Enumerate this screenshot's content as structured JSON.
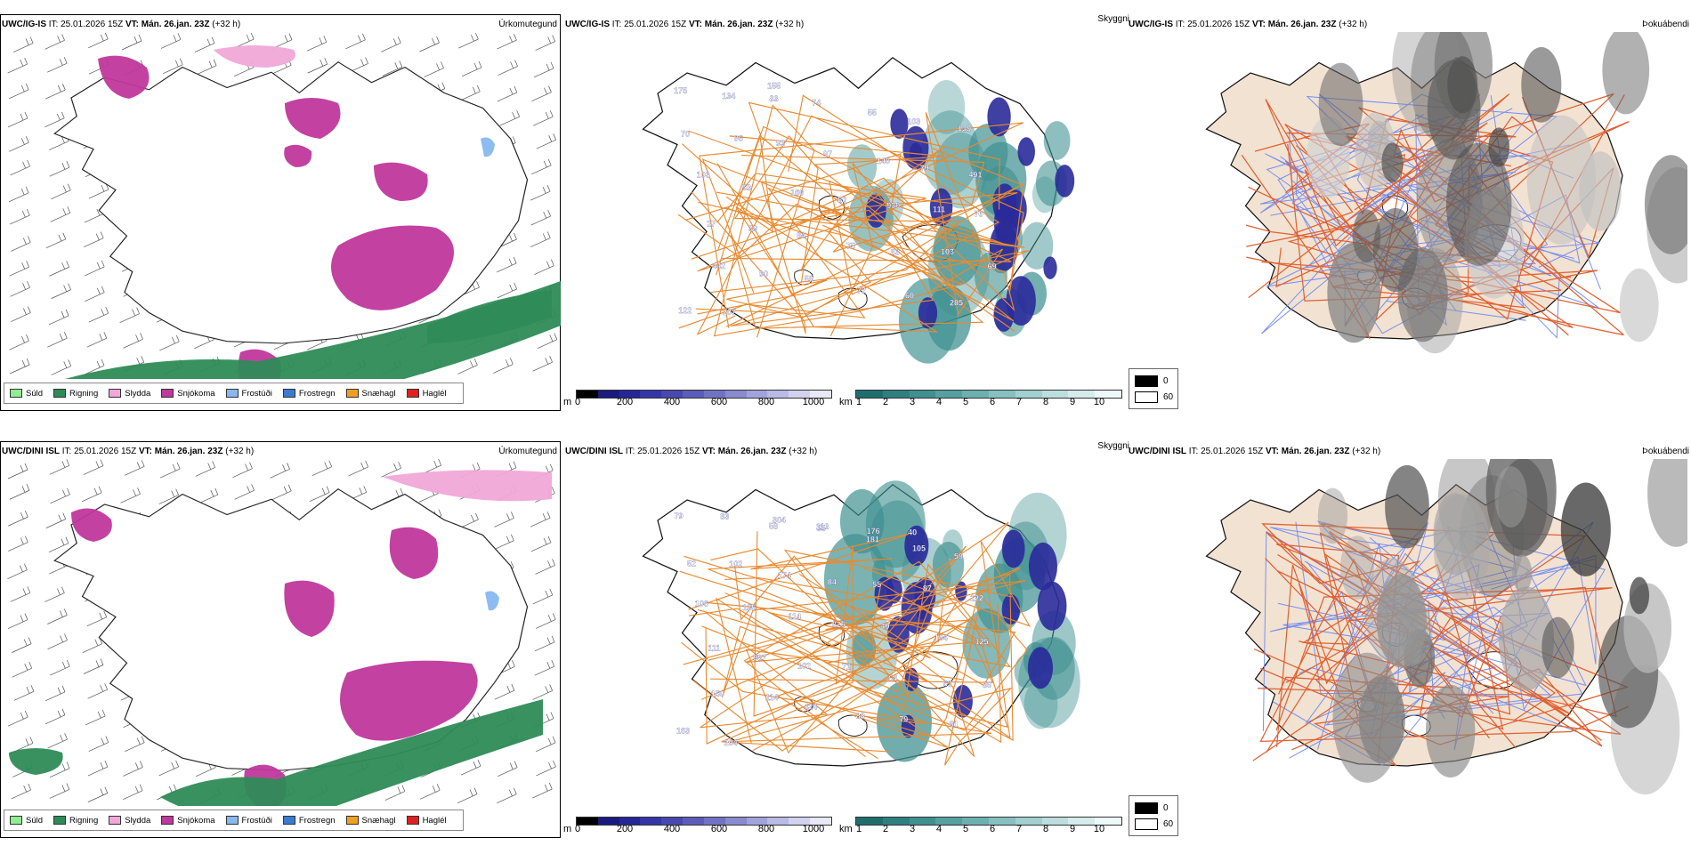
{
  "rows": [
    {
      "model": "UWC/IG-IS",
      "it_label": "IT:",
      "it_value": "25.01.2026 15Z",
      "vt_label": "VT:",
      "vt_value": "Mán. 26.jan. 23Z",
      "lead": "(+32 h)",
      "cloud_labels": [
        "175",
        "134",
        "83",
        "74",
        "55",
        "103",
        "139",
        "70",
        "96",
        "93",
        "97",
        "140",
        "79",
        "491",
        "103",
        "53",
        "160",
        "80",
        "930",
        "111",
        "76",
        "27",
        "39",
        "84",
        "75",
        "83",
        "103",
        "69",
        "442",
        "90",
        "59",
        "72",
        "60",
        "285",
        "122",
        "207",
        "155"
      ],
      "fog_header_model": "UWC/IG-IS"
    },
    {
      "model": "UWC/DINI ISL",
      "it_label": "IT:",
      "it_value": "25.01.2026 15Z",
      "vt_label": "VT:",
      "vt_value": "Mán. 26.jan. 23Z",
      "lead": "(+32 h)",
      "cloud_labels": [
        "79",
        "83",
        "58",
        "65",
        "181",
        "105",
        "59",
        "52",
        "102",
        "174",
        "84",
        "55",
        "87",
        "122",
        "106",
        "135",
        "114",
        "825",
        "49",
        "164",
        "125",
        "111",
        "987",
        "102",
        "72",
        "64",
        "63",
        "86",
        "150",
        "114",
        "424",
        "88",
        "79",
        "61",
        "163",
        "204",
        "304",
        "113",
        "176",
        "40"
      ],
      "fog_header_model": "UWC/DINI ISL"
    }
  ],
  "panels": {
    "precip_title": "Úrkomutegund",
    "cloud_title": "Skyggni",
    "fog_title": "Þokuábendi"
  },
  "precip_legend": [
    {
      "label": "Súld",
      "color": "#90ee90"
    },
    {
      "label": "Rigning",
      "color": "#2e8b57"
    },
    {
      "label": "Slydda",
      "color": "#f0a8d8"
    },
    {
      "label": "Snjókoma",
      "color": "#c0389c"
    },
    {
      "label": "Frostúði",
      "color": "#87b8f0"
    },
    {
      "label": "Frostregn",
      "color": "#3a7ad0"
    },
    {
      "label": "Snæhagl",
      "color": "#f0a020"
    },
    {
      "label": "Haglél",
      "color": "#e02020"
    }
  ],
  "ceiling_bar": {
    "unit": "m",
    "ticks": [
      "0",
      "200",
      "400",
      "600",
      "800",
      "1000"
    ],
    "colors": [
      "#000000",
      "#1a1a80",
      "#26269a",
      "#3535aa",
      "#4848b0",
      "#5c5cba",
      "#7272c4",
      "#8a8ad0",
      "#a2a2dc",
      "#babae6",
      "#d2d2f0",
      "#e8e8f8"
    ]
  },
  "visibility_bar": {
    "unit": "km",
    "ticks": [
      "1",
      "2",
      "3",
      "4",
      "5",
      "6",
      "7",
      "8",
      "9",
      "10"
    ],
    "colors": [
      "#1f6e6e",
      "#2e8080",
      "#3f9090",
      "#55a0a0",
      "#6cb0b0",
      "#86c0c0",
      "#a2d0d0",
      "#bcdede",
      "#d6ecec",
      "#eef8f8"
    ]
  },
  "fog_legend": {
    "high": "0",
    "low": "60"
  },
  "colors": {
    "snow": "#c0389c",
    "rain": "#2e8b57",
    "sleet": "#f0a8d8",
    "freezing_drizzle": "#87b8f0",
    "ceiling": "#2a2a9a",
    "visibility": "#3f9090",
    "roads": "#e88a30",
    "land_fog": "#f2e2d2",
    "rivers": "#7890f0",
    "fog_roads": "#e06030"
  }
}
